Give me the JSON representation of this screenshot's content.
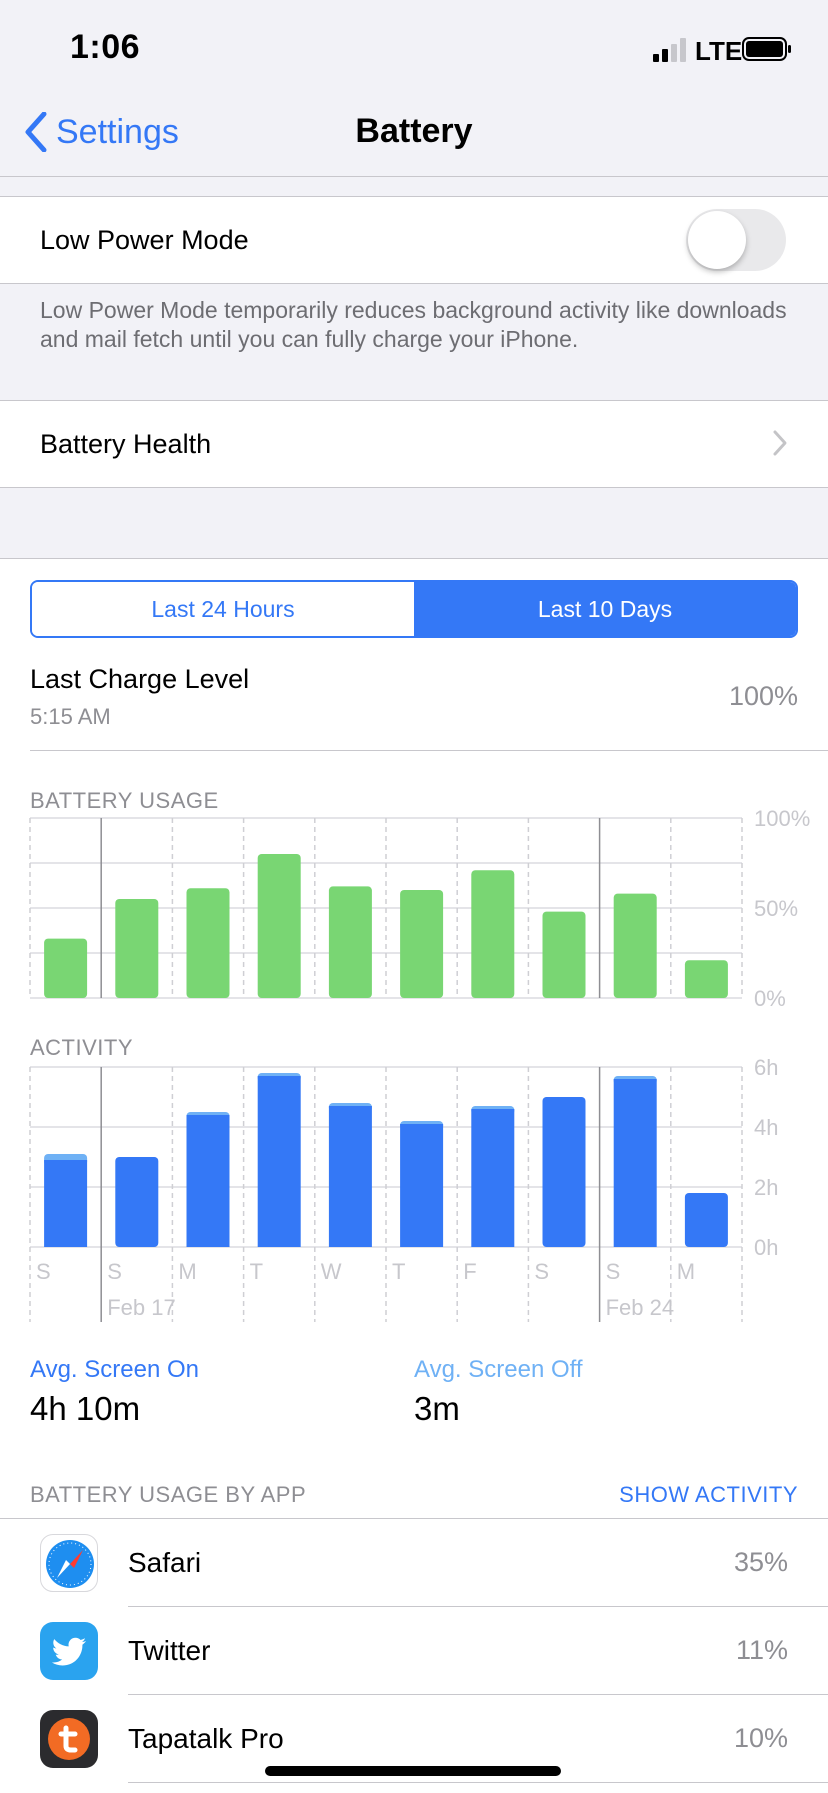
{
  "status": {
    "time": "1:06",
    "network": "LTE"
  },
  "nav": {
    "back_label": "Settings",
    "title": "Battery"
  },
  "low_power": {
    "label": "Low Power Mode",
    "enabled": false,
    "footnote": "Low Power Mode temporarily reduces background activity like downloads and mail fetch until you can fully charge your iPhone."
  },
  "battery_health": {
    "label": "Battery Health"
  },
  "range_tabs": {
    "options": [
      "Last 24 Hours",
      "Last 10 Days"
    ],
    "selected": "Last 10 Days"
  },
  "last_charge": {
    "title": "Last Charge Level",
    "time": "5:15 AM",
    "value": "100%"
  },
  "chart_data": [
    {
      "type": "bar",
      "title": "BATTERY USAGE",
      "categories": [
        "S",
        "S",
        "M",
        "T",
        "W",
        "T",
        "F",
        "S",
        "S",
        "M"
      ],
      "values": [
        33,
        55,
        61,
        80,
        62,
        60,
        71,
        48,
        58,
        21
      ],
      "ylim": [
        0,
        100
      ],
      "ytick_labels": [
        "100%",
        "50%",
        "0%"
      ],
      "colors": {
        "bar": "#79d673"
      }
    },
    {
      "type": "bar",
      "title": "ACTIVITY",
      "categories": [
        "S",
        "S",
        "M",
        "T",
        "W",
        "T",
        "F",
        "S",
        "S",
        "M"
      ],
      "series": [
        {
          "values": [
            2.9,
            3.0,
            4.4,
            5.7,
            4.7,
            4.1,
            4.6,
            5.0,
            5.6,
            1.8
          ]
        },
        {
          "values": [
            0.2,
            0.0,
            0.1,
            0.1,
            0.1,
            0.1,
            0.1,
            0.0,
            0.1,
            0.0
          ]
        }
      ],
      "ylim": [
        0,
        6
      ],
      "ytick_labels": [
        "6h",
        "4h",
        "2h",
        "0h"
      ],
      "date_labels": [
        {
          "text": "Feb 17",
          "index": 1
        },
        {
          "text": "Feb 24",
          "index": 8
        }
      ],
      "colors": {
        "screen_on": "#3478f6",
        "screen_off": "#6fb1f5"
      }
    }
  ],
  "averages": {
    "screen_on": {
      "label": "Avg. Screen On",
      "value": "4h 10m"
    },
    "screen_off": {
      "label": "Avg. Screen Off",
      "value": "3m"
    }
  },
  "app_usage": {
    "header": "BATTERY USAGE BY APP",
    "action": "SHOW ACTIVITY",
    "apps": [
      {
        "name": "Safari",
        "percent": "35%",
        "icon": "safari-icon"
      },
      {
        "name": "Twitter",
        "percent": "11%",
        "icon": "twitter-icon"
      },
      {
        "name": "Tapatalk Pro",
        "percent": "10%",
        "icon": "tapatalk-icon"
      }
    ]
  },
  "colors": {
    "accent": "#3478f6",
    "usage_bar": "#79d673",
    "screen_off": "#6fb1f5"
  }
}
